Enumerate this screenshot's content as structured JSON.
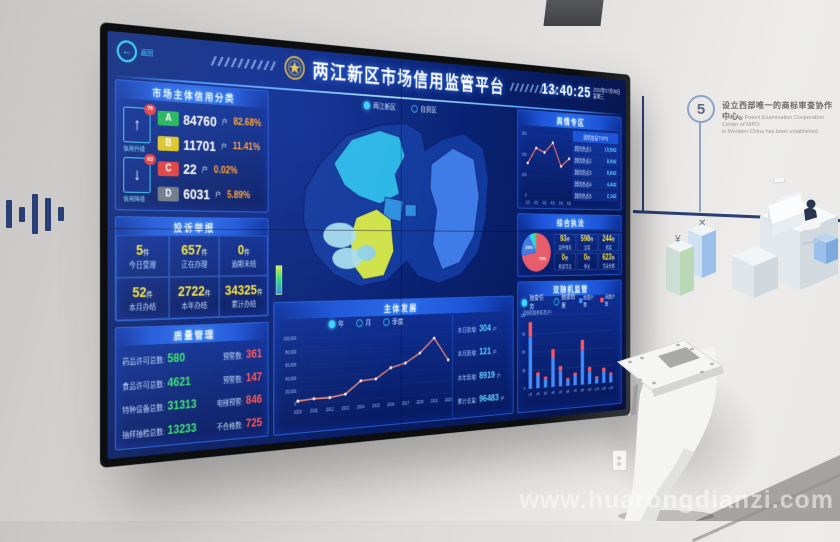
{
  "wall": {
    "milestone_number": "5",
    "text_cn": "设立西部唯一的商标审查协作中心。",
    "text_en_1": "The only Patent Examination Cooperation Center of NIPO",
    "text_en_2": "in Western China has been established."
  },
  "watermark": "www.huarongdianzi.com",
  "screen": {
    "back_label": "返回",
    "title": "两江新区市场信用监管平台",
    "clock": {
      "time": "13:40:25",
      "date": "2020年07月08日",
      "weekday": "星期三"
    },
    "map_tabs": [
      {
        "label": "两江新区",
        "active": true
      },
      {
        "label": "自贸区",
        "active": false
      }
    ],
    "panels": {
      "credit": {
        "title": "市场主体信用分类",
        "up": {
          "badge": "76",
          "label": "信用升级",
          "arrow": "↑"
        },
        "down": {
          "badge": "63",
          "label": "信用降级",
          "arrow": "↓"
        },
        "unit": "户",
        "rows": [
          {
            "grade": "A",
            "color": "#1fb553",
            "count": "84760",
            "pct": "82.68%"
          },
          {
            "grade": "B",
            "color": "#e0c51d",
            "count": "11701",
            "pct": "11.41%"
          },
          {
            "grade": "C",
            "color": "#e23b3b",
            "count": "22",
            "pct": "0.02%"
          },
          {
            "grade": "D",
            "color": "#6b7684",
            "count": "6031",
            "pct": "5.89%"
          }
        ]
      },
      "complaints": {
        "title": "投诉举报",
        "unit": "件",
        "cells": [
          {
            "value": "5",
            "label": "今日受理"
          },
          {
            "value": "657",
            "label": "正在办理"
          },
          {
            "value": "0",
            "label": "逾期未结"
          },
          {
            "value": "52",
            "label": "本月办结"
          },
          {
            "value": "2722",
            "label": "本年办结"
          },
          {
            "value": "34325",
            "label": "累计办结"
          }
        ]
      },
      "quality": {
        "title": "质量管理",
        "rows": [
          {
            "label": "药品许可总数:",
            "value": "580",
            "rlabel": "预警数:",
            "rvalue": "361"
          },
          {
            "label": "食品许可总数:",
            "value": "4621",
            "rlabel": "预警数:",
            "rvalue": "147"
          },
          {
            "label": "特种设备总数:",
            "value": "31313",
            "rlabel": "电梯预警:",
            "rvalue": "846"
          },
          {
            "label": "抽样抽检总数:",
            "value": "13233",
            "rlabel": "不合格数:",
            "rvalue": "725"
          }
        ]
      },
      "development": {
        "title": "主体发展",
        "legend": [
          {
            "label": "年",
            "active": true
          },
          {
            "label": "月",
            "active": false
          },
          {
            "label": "季度",
            "active": false
          }
        ],
        "unit": "户",
        "stats": [
          {
            "label": "本日新增:",
            "value": "304"
          },
          {
            "label": "本月新增:",
            "value": "121"
          },
          {
            "label": "本年新增:",
            "value": "8919"
          },
          {
            "label": "累计总量:",
            "value": "96483"
          }
        ],
        "chart": {
          "type": "line",
          "x_labels": [
            "2010",
            "2011",
            "2012",
            "2013",
            "2014",
            "2015",
            "2016",
            "2017",
            "2018",
            "2019",
            "2020"
          ],
          "values": [
            5000,
            7000,
            6800,
            10500,
            29500,
            31000,
            47000,
            53000,
            68000,
            91000,
            54000
          ],
          "y_max": 100000,
          "y_ticks": [
            0,
            20000,
            40000,
            60000,
            80000,
            100000
          ],
          "line_color": "#ff8f7a"
        }
      },
      "sentiment": {
        "title": "舆情专区",
        "list_header": "舆情信息TOP5",
        "items": [
          {
            "label": "舆情热点1",
            "value": "10,542"
          },
          {
            "label": "舆情热点2",
            "value": "8,942"
          },
          {
            "label": "舆情热点3",
            "value": "6,642"
          },
          {
            "label": "舆情热点4",
            "value": "4,442"
          },
          {
            "label": "舆情热点5",
            "value": "2,142"
          }
        ],
        "chart": {
          "type": "line",
          "x_labels": [
            "1月",
            "2月",
            "3月",
            "4月",
            "5月",
            "6月"
          ],
          "values": [
            160,
            235,
            215,
            265,
            150,
            190
          ],
          "y_max": 300,
          "y_ticks": [
            0,
            100,
            200,
            300
          ],
          "line_color": "#ff6f61"
        }
      },
      "enforcement": {
        "title": "综合执法",
        "unit": "件",
        "pie": {
          "type": "pie",
          "slices": [
            {
              "pct": 72,
              "color": "#e85d6c",
              "label": "72%"
            },
            {
              "pct": 20,
              "color": "#3f7ce8",
              "label": "20%"
            },
            {
              "pct": 5,
              "color": "#37d6ff",
              "label": ""
            },
            {
              "pct": 3,
              "color": "#3ae26b",
              "label": ""
            }
          ]
        },
        "stats": [
          {
            "value": "93",
            "label": "案件线索"
          },
          {
            "value": "598",
            "label": "立案"
          },
          {
            "value": "244",
            "label": "结案"
          },
          {
            "value": "0",
            "label": "移送司法"
          },
          {
            "value": "0",
            "label": "听证"
          },
          {
            "value": "623",
            "label": "罚没金额"
          }
        ]
      },
      "random_check": {
        "title": "双随机监管",
        "caption": "双随机抽查情况(户)",
        "options": [
          {
            "label": "抽查任务",
            "active": true
          },
          {
            "label": "抽查结果",
            "active": false
          }
        ],
        "legend": [
          {
            "label": "检查户数",
            "color": "#3f8cff"
          },
          {
            "label": "问题户数",
            "color": "#ff5560"
          }
        ],
        "chart": {
          "type": "bar-stacked",
          "x_labels": [
            "1月",
            "2月",
            "3月",
            "4月",
            "5月",
            "6月",
            "7月",
            "8月",
            "9月",
            "10月",
            "11月",
            "12月"
          ],
          "series": [
            {
              "name": "检查户数",
              "color": "#3f8cff",
              "values": [
                86,
                20,
                14,
                48,
                26,
                10,
                16,
                58,
                22,
                9,
                20,
                13
              ]
            },
            {
              "name": "问题户数",
              "color": "#ff5560",
              "values": [
                24,
                6,
                4,
                15,
                8,
                3,
                5,
                18,
                7,
                3,
                6,
                4
              ]
            }
          ],
          "y_max": 120
        }
      }
    }
  }
}
